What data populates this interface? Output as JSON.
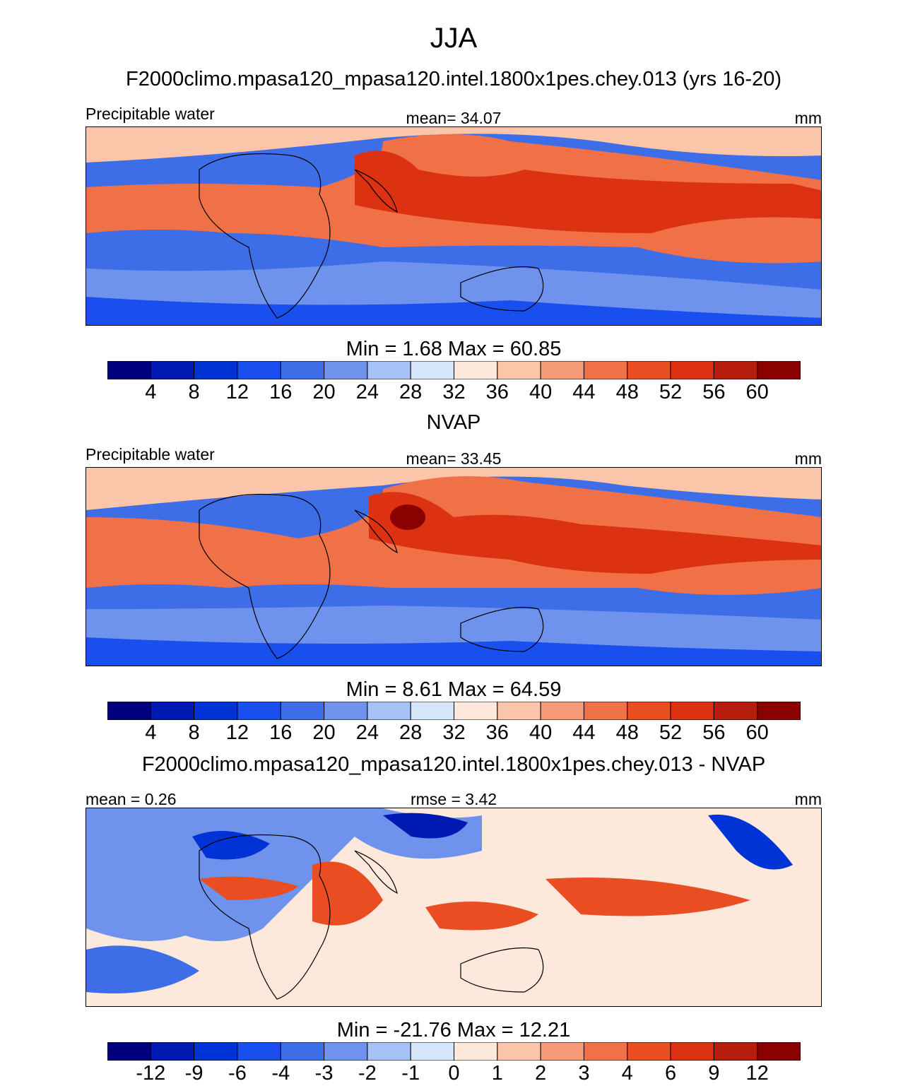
{
  "figure": {
    "title": "JJA",
    "subtitle": "F2000climo.mpasa120_mpasa120.intel.1800x1pes.chey.013 (yrs 16-20)"
  },
  "panels": [
    {
      "variable_label": "Precipitable water",
      "stat_center": "mean=  34.07",
      "units": "mm",
      "minmax": "Min =   1.68 Max =  60.85",
      "colorbar_ticks": [
        "4",
        "8",
        "12",
        "16",
        "20",
        "24",
        "28",
        "32",
        "36",
        "40",
        "44",
        "48",
        "52",
        "56",
        "60"
      ]
    },
    {
      "panel_title": "NVAP",
      "variable_label": "Precipitable water",
      "stat_center": "mean=  33.45",
      "units": "mm",
      "minmax": "Min =   8.61 Max =  64.59",
      "colorbar_ticks": [
        "4",
        "8",
        "12",
        "16",
        "20",
        "24",
        "28",
        "32",
        "36",
        "40",
        "44",
        "48",
        "52",
        "56",
        "60"
      ]
    },
    {
      "panel_title": "F2000climo.mpasa120_mpasa120.intel.1800x1pes.chey.013 - NVAP",
      "variable_label": "mean =   0.26",
      "stat_center": "rmse =   3.42",
      "units": "mm",
      "minmax": "Min = -21.76 Max =  12.21",
      "colorbar_ticks": [
        "-12",
        "-9",
        "-6",
        "-4",
        "-3",
        "-2",
        "-1",
        "0",
        "1",
        "2",
        "3",
        "4",
        "6",
        "9",
        "12"
      ]
    }
  ],
  "colors": {
    "palette": [
      "#00007f",
      "#0019b2",
      "#0033d6",
      "#1a4fef",
      "#3d6ee8",
      "#6f93ec",
      "#a6c1f5",
      "#d6e6fb",
      "#fde9dc",
      "#fbc5aa",
      "#f59a76",
      "#f07048",
      "#ea4d22",
      "#dc3212",
      "#b71d0c",
      "#8b0000"
    ]
  }
}
